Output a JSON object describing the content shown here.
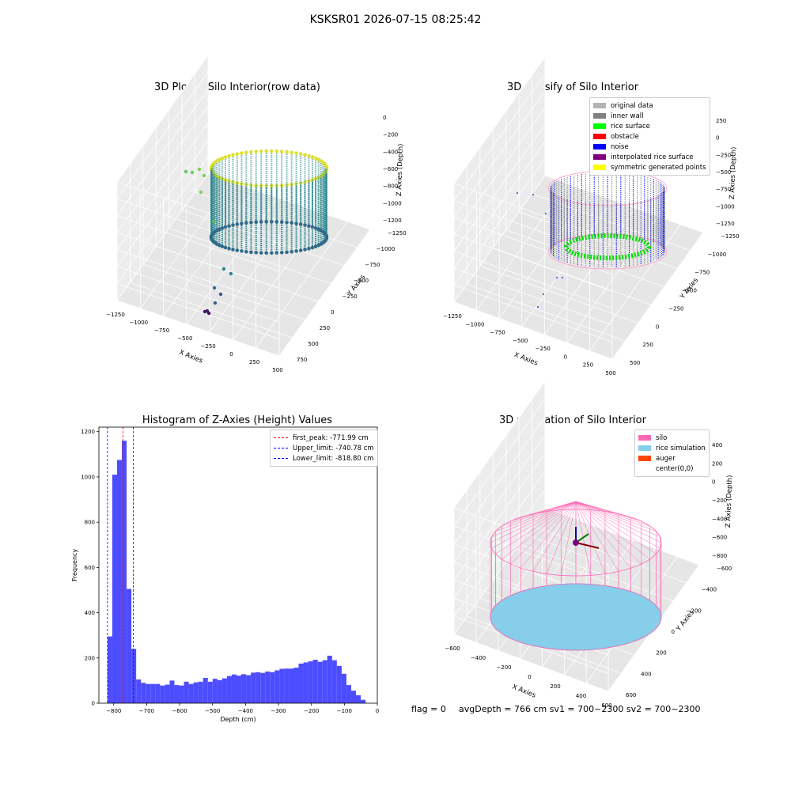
{
  "suptitle": "KSKSR01 2026-07-15 08:25:42",
  "footer": {
    "flag": "flag = 0",
    "stats": "avgDepth = 766 cm  sv1 = 700~2300  sv2 = 700~2300"
  },
  "chart_data": [
    {
      "type": "scatter",
      "title": "3D Plot of Silo Interior(row data)",
      "xlabel": "X Axies",
      "ylabel": "Y Axies",
      "zlabel": "Z Axies (Depth)",
      "x_ticks": [
        "−1250",
        "−1000",
        "−750",
        "−500",
        "−250",
        "0",
        "250",
        "500"
      ],
      "y_ticks": [
        "−1250",
        "−1000",
        "−750",
        "−500",
        "−250",
        "0",
        "250",
        "500",
        "750"
      ],
      "z_ticks": [
        "0",
        "−200",
        "−400",
        "−600",
        "−800",
        "−1000",
        "−1200"
      ],
      "colormap": "viridis"
    },
    {
      "type": "scatter",
      "title": "3D classify of Silo Interior",
      "xlabel": "X Axies",
      "ylabel": "Y Axies",
      "zlabel": "Z Axies (Depth)",
      "x_ticks": [
        "−1250",
        "−1000",
        "−750",
        "−500",
        "−250",
        "0",
        "250",
        "500"
      ],
      "y_ticks": [
        "−1250",
        "−1000",
        "−750",
        "−500",
        "−250",
        "0",
        "250",
        "500"
      ],
      "z_ticks": [
        "250",
        "0",
        "−250",
        "−500",
        "−750",
        "−1000",
        "−1250"
      ],
      "legend": [
        {
          "label": "original data",
          "color": "#b3b3b3"
        },
        {
          "label": "inner wall",
          "color": "#808080"
        },
        {
          "label": "rice surface",
          "color": "#00ff00"
        },
        {
          "label": "obstacle",
          "color": "#ff0000"
        },
        {
          "label": "noise",
          "color": "#0000ff"
        },
        {
          "label": "interpolated rice surface",
          "color": "#800080"
        },
        {
          "label": "symmetric generated points",
          "color": "#ffff00"
        }
      ]
    },
    {
      "type": "bar",
      "title": "Histogram of Z-Axies (Height) Values",
      "xlabel": "Depth (cm)",
      "ylabel": "Frequency",
      "xlim": [
        -845,
        0
      ],
      "ylim": [
        0,
        1220
      ],
      "bar_color": "#4d4dff",
      "x_ticks": [
        -800,
        -700,
        -600,
        -500,
        -400,
        -300,
        -200,
        -100,
        0
      ],
      "y_ticks": [
        0,
        200,
        400,
        600,
        800,
        1000,
        1200
      ],
      "bins": [
        {
          "x0": -818.8,
          "x1": -804.3,
          "v": 295
        },
        {
          "x0": -804.3,
          "x1": -789.8,
          "v": 1010
        },
        {
          "x0": -789.8,
          "x1": -775.3,
          "v": 1075
        },
        {
          "x0": -775.3,
          "x1": -760.8,
          "v": 1160
        },
        {
          "x0": -760.8,
          "x1": -746.3,
          "v": 505
        },
        {
          "x0": -746.3,
          "x1": -731.8,
          "v": 240
        },
        {
          "x0": -731.8,
          "x1": -717.3,
          "v": 105
        },
        {
          "x0": -717.3,
          "x1": -702.8,
          "v": 90
        },
        {
          "x0": -702.8,
          "x1": -688.3,
          "v": 85
        },
        {
          "x0": -688.3,
          "x1": -673.8,
          "v": 85
        },
        {
          "x0": -673.8,
          "x1": -659.3,
          "v": 85
        },
        {
          "x0": -659.3,
          "x1": -644.8,
          "v": 78
        },
        {
          "x0": -644.8,
          "x1": -630.3,
          "v": 82
        },
        {
          "x0": -630.3,
          "x1": -615.8,
          "v": 100
        },
        {
          "x0": -615.8,
          "x1": -601.3,
          "v": 80
        },
        {
          "x0": -601.3,
          "x1": -586.8,
          "v": 78
        },
        {
          "x0": -586.8,
          "x1": -572.3,
          "v": 95
        },
        {
          "x0": -572.3,
          "x1": -557.8,
          "v": 85
        },
        {
          "x0": -557.8,
          "x1": -543.3,
          "v": 92
        },
        {
          "x0": -543.3,
          "x1": -528.8,
          "v": 95
        },
        {
          "x0": -528.8,
          "x1": -514.3,
          "v": 112
        },
        {
          "x0": -514.3,
          "x1": -499.8,
          "v": 95
        },
        {
          "x0": -499.8,
          "x1": -485.3,
          "v": 108
        },
        {
          "x0": -485.3,
          "x1": -470.8,
          "v": 102
        },
        {
          "x0": -470.8,
          "x1": -456.3,
          "v": 110
        },
        {
          "x0": -456.3,
          "x1": -441.8,
          "v": 120
        },
        {
          "x0": -441.8,
          "x1": -427.3,
          "v": 127
        },
        {
          "x0": -427.3,
          "x1": -412.8,
          "v": 122
        },
        {
          "x0": -412.8,
          "x1": -398.3,
          "v": 128
        },
        {
          "x0": -398.3,
          "x1": -383.8,
          "v": 124
        },
        {
          "x0": -383.8,
          "x1": -369.3,
          "v": 135
        },
        {
          "x0": -369.3,
          "x1": -354.8,
          "v": 137
        },
        {
          "x0": -354.8,
          "x1": -340.3,
          "v": 134
        },
        {
          "x0": -340.3,
          "x1": -325.8,
          "v": 140
        },
        {
          "x0": -325.8,
          "x1": -311.3,
          "v": 137
        },
        {
          "x0": -311.3,
          "x1": -296.8,
          "v": 145
        },
        {
          "x0": -296.8,
          "x1": -282.3,
          "v": 152
        },
        {
          "x0": -282.3,
          "x1": -267.8,
          "v": 153
        },
        {
          "x0": -267.8,
          "x1": -253.3,
          "v": 153
        },
        {
          "x0": -253.3,
          "x1": -238.8,
          "v": 157
        },
        {
          "x0": -238.8,
          "x1": -224.3,
          "v": 175
        },
        {
          "x0": -224.3,
          "x1": -209.8,
          "v": 180
        },
        {
          "x0": -209.8,
          "x1": -195.3,
          "v": 185
        },
        {
          "x0": -195.3,
          "x1": -180.8,
          "v": 192
        },
        {
          "x0": -180.8,
          "x1": -166.3,
          "v": 183
        },
        {
          "x0": -166.3,
          "x1": -151.8,
          "v": 190
        },
        {
          "x0": -151.8,
          "x1": -137.3,
          "v": 210
        },
        {
          "x0": -137.3,
          "x1": -122.8,
          "v": 190
        },
        {
          "x0": -122.8,
          "x1": -108.3,
          "v": 165
        },
        {
          "x0": -108.3,
          "x1": -93.8,
          "v": 130
        },
        {
          "x0": -93.8,
          "x1": -79.3,
          "v": 80
        },
        {
          "x0": -79.3,
          "x1": -64.8,
          "v": 55
        },
        {
          "x0": -64.8,
          "x1": -50.3,
          "v": 35
        },
        {
          "x0": -50.3,
          "x1": -35.8,
          "v": 15
        }
      ],
      "lines": [
        {
          "label": "first_peak: -771.99 cm",
          "x": -771.99,
          "color": "#ff0000"
        },
        {
          "label": "Upper_limit: -740.78 cm",
          "x": -740.78,
          "color": "#0000ff"
        },
        {
          "label": "Lower_limit: -818.80 cm",
          "x": -818.8,
          "color": "#0000ff"
        }
      ]
    },
    {
      "type": "scatter",
      "title": "3D simulation of Silo Interior",
      "xlabel": "X Axies",
      "ylabel": "Y Axies",
      "zlabel": "Z Axies (Depth)",
      "x_ticks": [
        "−600",
        "−400",
        "−200",
        "0",
        "200",
        "400",
        "600"
      ],
      "y_ticks": [
        "−600",
        "−400",
        "−200",
        "0",
        "200",
        "400",
        "600"
      ],
      "z_ticks": [
        "400",
        "200",
        "0",
        "−200",
        "−400",
        "−600",
        "−800"
      ],
      "legend": [
        {
          "label": "silo",
          "color": "#ff69b4"
        },
        {
          "label": "rice simulation",
          "color": "#87ceeb"
        },
        {
          "label": "auger",
          "color": "#ff4500"
        },
        {
          "label": "center(0,0)",
          "color": ""
        }
      ]
    }
  ]
}
